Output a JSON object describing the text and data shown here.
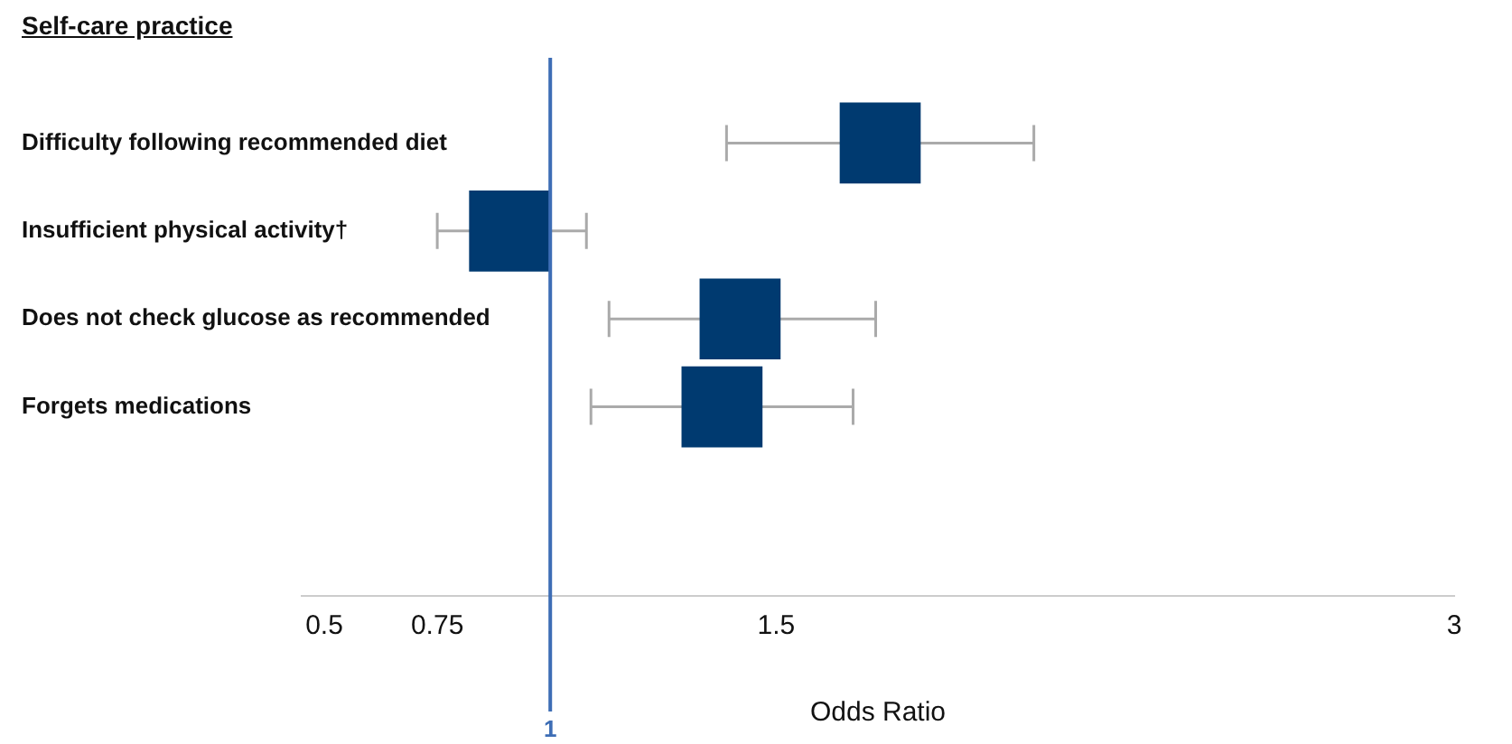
{
  "chart_data": {
    "type": "scatter",
    "orientation": "horizontal",
    "ylabel": "Self-care practice",
    "xlabel": "Odds Ratio",
    "categories": [
      "Difficulty following recommended diet",
      "Insufficient physical activity†",
      "Does not check glucose as recommended",
      "Forgets medications"
    ],
    "values": [
      1.73,
      0.91,
      1.42,
      1.38
    ],
    "errors": [
      [
        1.39,
        2.07
      ],
      [
        0.75,
        1.08
      ],
      [
        1.13,
        1.72
      ],
      [
        1.09,
        1.67
      ]
    ],
    "color": "#003a70",
    "xlim": [
      0.45,
      3
    ],
    "xticks": [
      0.5,
      0.75,
      1.5,
      3
    ],
    "ref_lines": [
      {
        "axis": "x",
        "value": 1,
        "label": "1",
        "color": "#3d6db5"
      }
    ],
    "marker": "square",
    "grid": false,
    "legend": false
  }
}
